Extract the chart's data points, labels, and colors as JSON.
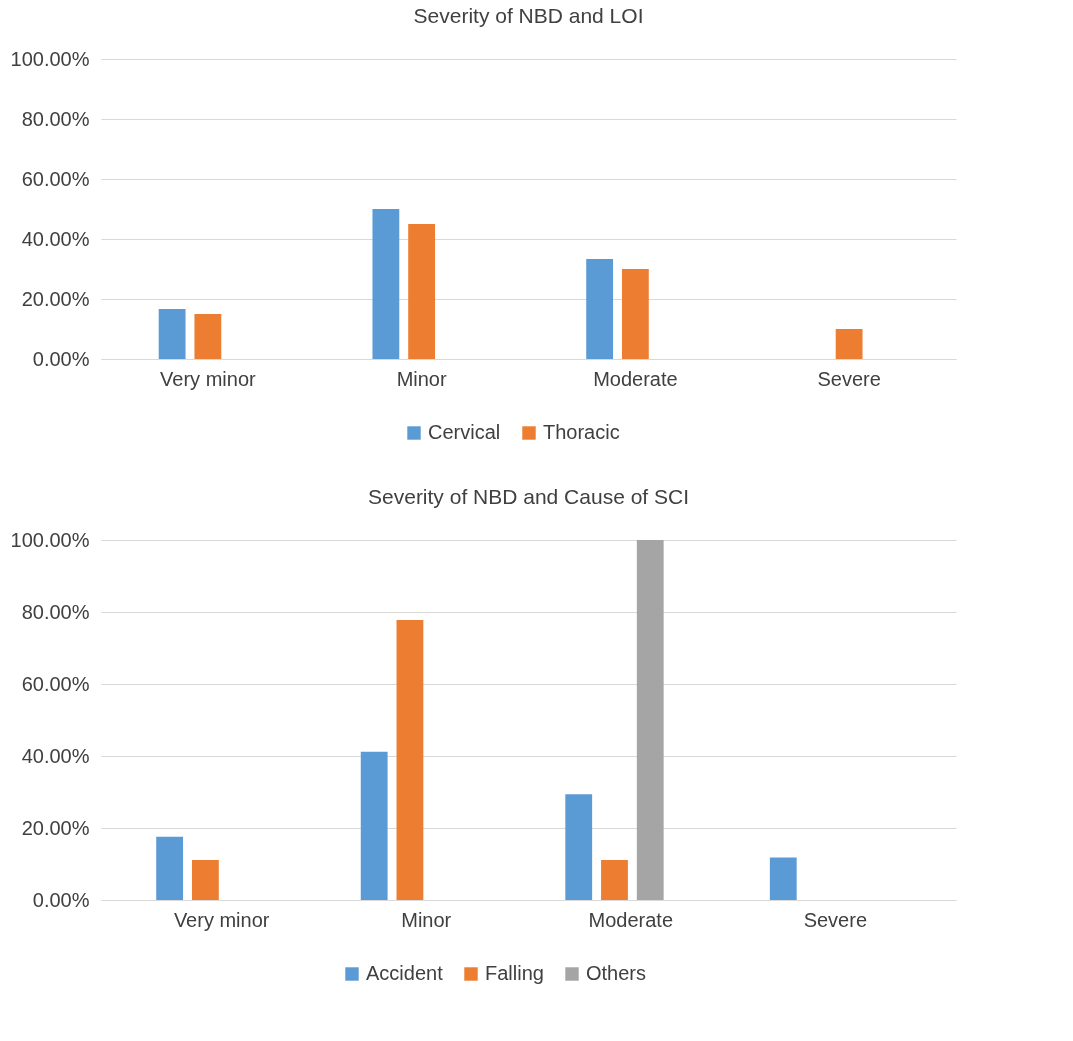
{
  "chart_data": [
    {
      "type": "bar",
      "title": "Severity of NBD and LOI",
      "categories": [
        "Very minor",
        "Minor",
        "Moderate",
        "Severe"
      ],
      "series": [
        {
          "name": "Cervical",
          "color": "#5b9bd5",
          "values": [
            16.7,
            50,
            33.3,
            0
          ]
        },
        {
          "name": "Thoracic",
          "color": "#ed7d31",
          "values": [
            15,
            45,
            30,
            10
          ]
        }
      ],
      "ylim": [
        0,
        100
      ],
      "yticks": [
        {
          "value": 0,
          "label": "0.00%"
        },
        {
          "value": 20,
          "label": "20.00%"
        },
        {
          "value": 40,
          "label": "40.00%"
        },
        {
          "value": 60,
          "label": "60.00%"
        },
        {
          "value": 80,
          "label": "80.00%"
        },
        {
          "value": 100,
          "label": "100.00%"
        }
      ],
      "grid": "y",
      "legend": "bottom"
    },
    {
      "type": "bar",
      "title": "Severity of NBD and Cause of SCI",
      "categories": [
        "Very minor",
        "Minor",
        "Moderate",
        "Severe"
      ],
      "series": [
        {
          "name": "Accident",
          "color": "#5b9bd5",
          "values": [
            17.6,
            41.2,
            29.4,
            11.8
          ]
        },
        {
          "name": "Falling",
          "color": "#ed7d31",
          "values": [
            11.1,
            77.8,
            11.1,
            0
          ]
        },
        {
          "name": "Others",
          "color": "#a5a5a5",
          "values": [
            0,
            0,
            100,
            0
          ]
        }
      ],
      "ylim": [
        0,
        100
      ],
      "yticks": [
        {
          "value": 0,
          "label": "0.00%"
        },
        {
          "value": 20,
          "label": "20.00%"
        },
        {
          "value": 40,
          "label": "40.00%"
        },
        {
          "value": 60,
          "label": "60.00%"
        },
        {
          "value": 80,
          "label": "80.00%"
        },
        {
          "value": 100,
          "label": "100.00%"
        }
      ],
      "grid": "y",
      "legend": "bottom"
    }
  ]
}
